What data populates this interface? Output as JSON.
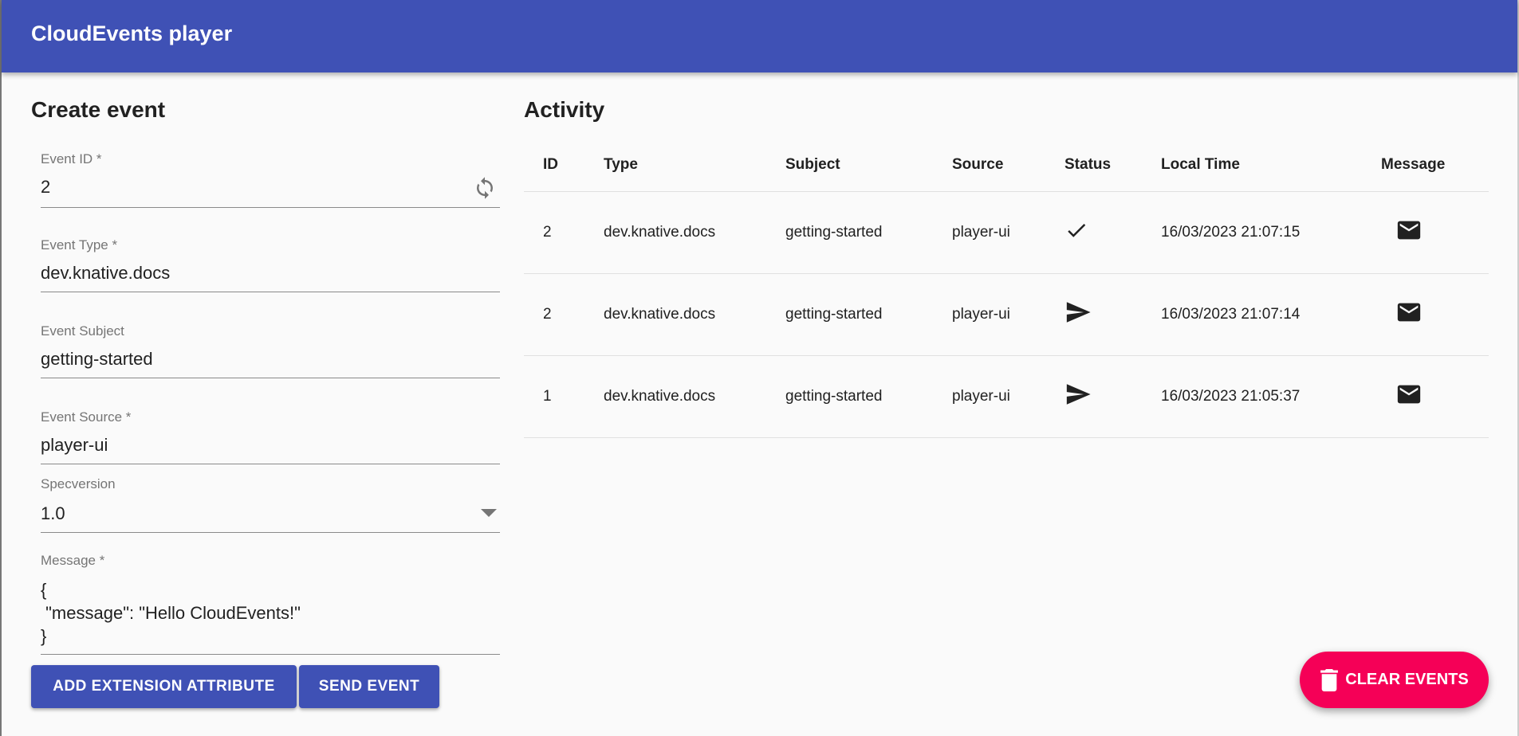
{
  "app": {
    "title": "CloudEvents player"
  },
  "form": {
    "heading": "Create event",
    "event_id": {
      "label": "Event ID *",
      "value": "2"
    },
    "event_type": {
      "label": "Event Type *",
      "value": "dev.knative.docs"
    },
    "event_subject": {
      "label": "Event Subject",
      "value": "getting-started"
    },
    "event_source": {
      "label": "Event Source *",
      "value": "player-ui"
    },
    "specversion": {
      "label": "Specversion",
      "value": "1.0"
    },
    "message": {
      "label": "Message *",
      "value": "{\n \"message\": \"Hello CloudEvents!\"\n}"
    },
    "add_extension_label": "ADD EXTENSION ATTRIBUTE",
    "send_label": "SEND EVENT"
  },
  "activity": {
    "heading": "Activity",
    "columns": [
      "ID",
      "Type",
      "Subject",
      "Source",
      "Status",
      "Local Time",
      "Message"
    ],
    "rows": [
      {
        "id": "2",
        "type": "dev.knative.docs",
        "subject": "getting-started",
        "source": "player-ui",
        "status": "received-check-icon",
        "time": "16/03/2023 21:07:15",
        "message": "mail-icon"
      },
      {
        "id": "2",
        "type": "dev.knative.docs",
        "subject": "getting-started",
        "source": "player-ui",
        "status": "sent-icon",
        "time": "16/03/2023 21:07:14",
        "message": "mail-icon"
      },
      {
        "id": "1",
        "type": "dev.knative.docs",
        "subject": "getting-started",
        "source": "player-ui",
        "status": "sent-icon",
        "time": "16/03/2023 21:05:37",
        "message": "mail-icon"
      }
    ]
  },
  "clear_label": "CLEAR EVENTS",
  "colors": {
    "primary": "#3f51b5",
    "accent": "#f50057"
  }
}
